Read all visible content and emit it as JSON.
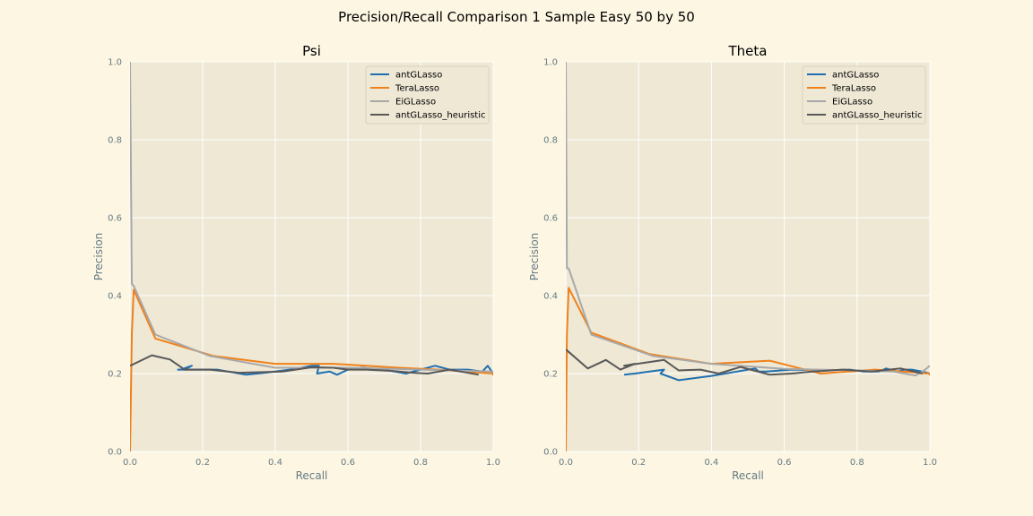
{
  "figure": {
    "title": "Precision/Recall Comparison 1 Sample Easy 50 by 50",
    "colors": {
      "page_bg": "#fdf6e3",
      "axes_bg": "#eee8d5",
      "grid": "#ffffff",
      "tick_text": "#657b83",
      "antGLasso": "#1f6fb0",
      "TeraLasso": "#f0811a",
      "EiGLasso": "#a8a8a8",
      "antGLasso_heuristic": "#585858"
    }
  },
  "chart_data": [
    {
      "type": "line",
      "title": "Psi",
      "xlabel": "Recall",
      "ylabel": "Precision",
      "xlim": [
        0,
        1
      ],
      "ylim": [
        0,
        1
      ],
      "xticks": [
        "0.0",
        "0.2",
        "0.4",
        "0.6",
        "0.8",
        "1.0"
      ],
      "yticks": [
        "0.0",
        "0.2",
        "0.4",
        "0.6",
        "0.8",
        "1.0"
      ],
      "grid": true,
      "legend": "top-right",
      "series": [
        {
          "name": "antGLasso",
          "color_key": "antGLasso",
          "x": [
            0.13,
            0.15,
            0.17,
            0.14,
            0.2,
            0.24,
            0.27,
            0.32,
            0.38,
            0.44,
            0.5,
            0.52,
            0.515,
            0.55,
            0.57,
            0.6,
            0.64,
            0.7,
            0.76,
            0.8,
            0.84,
            0.88,
            0.93,
            0.97,
            0.985,
            1.0
          ],
          "y": [
            0.21,
            0.21,
            0.22,
            0.21,
            0.21,
            0.21,
            0.205,
            0.197,
            0.203,
            0.21,
            0.22,
            0.22,
            0.2,
            0.205,
            0.197,
            0.21,
            0.215,
            0.21,
            0.2,
            0.21,
            0.22,
            0.21,
            0.21,
            0.205,
            0.22,
            0.2
          ]
        },
        {
          "name": "TeraLasso",
          "color_key": "TeraLasso",
          "x": [
            0.0,
            0.005,
            0.01,
            0.07,
            0.23,
            0.4,
            0.56,
            0.74,
            0.85,
            1.0,
            1.0
          ],
          "y": [
            0.0,
            0.3,
            0.415,
            0.29,
            0.245,
            0.225,
            0.225,
            0.215,
            0.21,
            0.2,
            0.195
          ]
        },
        {
          "name": "EiGLasso",
          "color_key": "EiGLasso",
          "x": [
            0.0,
            0.005,
            0.01,
            0.07,
            0.22,
            0.4,
            0.6,
            0.8,
            1.0
          ],
          "y": [
            1.0,
            0.43,
            0.425,
            0.3,
            0.245,
            0.215,
            0.215,
            0.21,
            0.205
          ]
        },
        {
          "name": "antGLasso_heuristic",
          "color_key": "antGLasso_heuristic",
          "x": [
            0.0,
            0.06,
            0.11,
            0.15,
            0.22,
            0.3,
            0.42,
            0.5,
            0.56,
            0.6,
            0.65,
            0.72,
            0.78,
            0.82,
            0.88,
            0.96
          ],
          "y": [
            0.22,
            0.247,
            0.236,
            0.21,
            0.21,
            0.202,
            0.205,
            0.216,
            0.215,
            0.21,
            0.21,
            0.207,
            0.202,
            0.2,
            0.21,
            0.197
          ]
        }
      ]
    },
    {
      "type": "line",
      "title": "Theta",
      "xlabel": "Recall",
      "ylabel": "Precision",
      "xlim": [
        0,
        1
      ],
      "ylim": [
        0,
        1
      ],
      "xticks": [
        "0.0",
        "0.2",
        "0.4",
        "0.6",
        "0.8",
        "1.0"
      ],
      "yticks": [
        "0.0",
        "0.2",
        "0.4",
        "0.6",
        "0.8",
        "1.0"
      ],
      "grid": true,
      "legend": "top-right",
      "series": [
        {
          "name": "antGLasso",
          "color_key": "antGLasso",
          "x": [
            0.16,
            0.19,
            0.23,
            0.27,
            0.26,
            0.31,
            0.4,
            0.52,
            0.53,
            0.55,
            0.62,
            0.7,
            0.78,
            0.82,
            0.86,
            0.88,
            0.91,
            0.93,
            0.95,
            0.98,
            1.0
          ],
          "y": [
            0.197,
            0.2,
            0.205,
            0.21,
            0.2,
            0.183,
            0.194,
            0.213,
            0.205,
            0.205,
            0.21,
            0.208,
            0.21,
            0.205,
            0.205,
            0.213,
            0.205,
            0.21,
            0.21,
            0.205,
            0.2
          ]
        },
        {
          "name": "TeraLasso",
          "color_key": "TeraLasso",
          "x": [
            0.0,
            0.003,
            0.008,
            0.07,
            0.23,
            0.4,
            0.56,
            0.7,
            0.85,
            1.0,
            1.0
          ],
          "y": [
            0.0,
            0.3,
            0.42,
            0.305,
            0.25,
            0.225,
            0.233,
            0.2,
            0.21,
            0.2,
            0.195
          ]
        },
        {
          "name": "EiGLasso",
          "color_key": "EiGLasso",
          "x": [
            0.0,
            0.003,
            0.008,
            0.07,
            0.24,
            0.4,
            0.6,
            0.8,
            0.9,
            0.96,
            0.98,
            1.0
          ],
          "y": [
            1.0,
            0.47,
            0.47,
            0.3,
            0.245,
            0.225,
            0.212,
            0.208,
            0.205,
            0.195,
            0.205,
            0.22
          ]
        },
        {
          "name": "antGLasso_heuristic",
          "color_key": "antGLasso_heuristic",
          "x": [
            0.0,
            0.06,
            0.11,
            0.15,
            0.19,
            0.16,
            0.27,
            0.31,
            0.37,
            0.42,
            0.48,
            0.56,
            0.62,
            0.68,
            0.76,
            0.84,
            0.92,
            0.98
          ],
          "y": [
            0.262,
            0.213,
            0.235,
            0.21,
            0.225,
            0.22,
            0.235,
            0.208,
            0.21,
            0.2,
            0.217,
            0.197,
            0.2,
            0.205,
            0.21,
            0.205,
            0.213,
            0.2
          ]
        }
      ]
    }
  ]
}
